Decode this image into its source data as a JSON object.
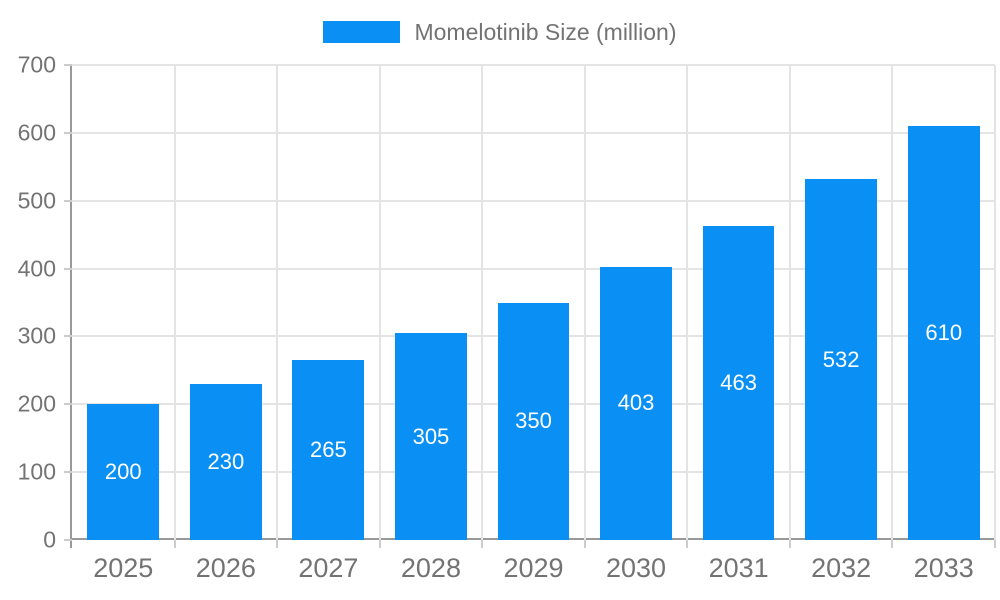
{
  "legend": {
    "label": "Momelotinib Size (million)"
  },
  "colors": {
    "bar": "#0a90f5",
    "grid": "#e4e4e4",
    "axis": "#999999",
    "tick": "#cccccc",
    "tick_label": "#737373",
    "value_label": "#ffffff",
    "background": "#ffffff"
  },
  "chart_data": {
    "type": "bar",
    "title": "",
    "legend_entries": [
      "Momelotinib Size (million)"
    ],
    "legend_position": "top",
    "categories": [
      "2025",
      "2026",
      "2027",
      "2028",
      "2029",
      "2030",
      "2031",
      "2032",
      "2033"
    ],
    "series": [
      {
        "name": "Momelotinib Size (million)",
        "values": [
          200,
          230,
          265,
          305,
          350,
          403,
          463,
          532,
          610
        ]
      }
    ],
    "value_labels_shown": true,
    "value_label_position": "center-of-bar",
    "xlabel": "",
    "ylabel": "",
    "ylim": [
      0,
      700
    ],
    "yticks": [
      0,
      100,
      200,
      300,
      400,
      500,
      600,
      700
    ],
    "grid": true,
    "vertical_gridlines": true
  }
}
